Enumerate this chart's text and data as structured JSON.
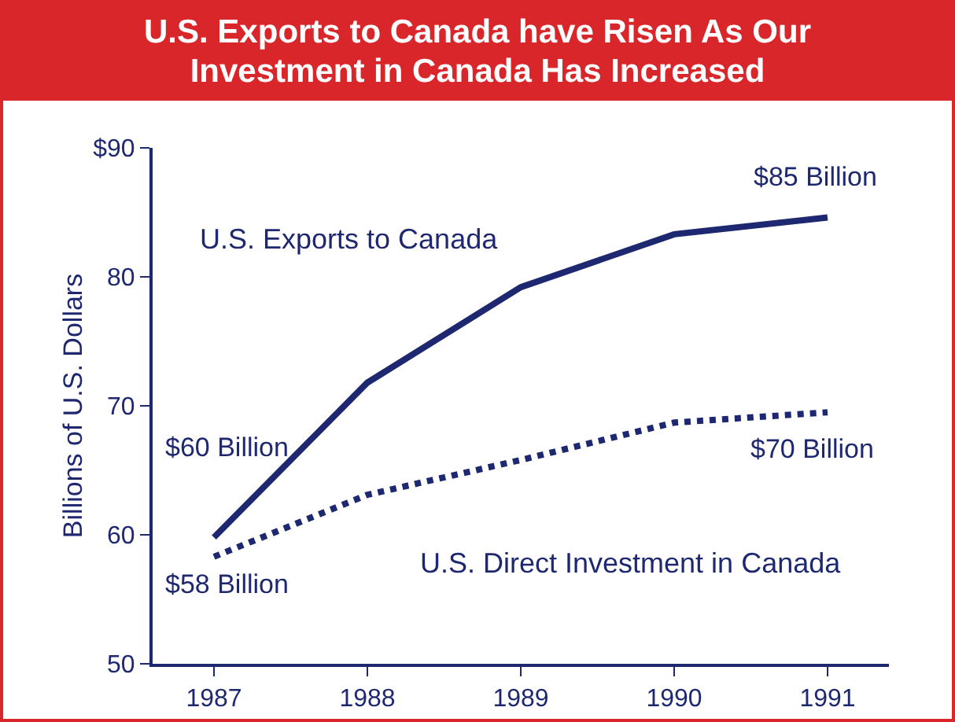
{
  "chart_data": {
    "type": "line",
    "title": "U.S. Exports to Canada have Risen As Our Investment in Canada Has Increased",
    "ylabel": "Billions of U.S. Dollars",
    "x": [
      1987,
      1988,
      1989,
      1990,
      1991
    ],
    "xlim": [
      1986.6,
      1991.4
    ],
    "xticks": [
      1987,
      1988,
      1989,
      1990,
      1991
    ],
    "ylim": [
      50,
      90
    ],
    "yticks": [
      50,
      60,
      70,
      80,
      {
        "value": 90,
        "label": "$90"
      }
    ],
    "grid": false,
    "legend": false,
    "marker": "none",
    "series": [
      {
        "name": "U.S. Exports to Canada",
        "color": "#1e2870",
        "line_style": "solid",
        "values": [
          59.8,
          71.8,
          79.2,
          83.3,
          84.6
        ],
        "value_labels": [
          "$60 Billion",
          null,
          null,
          null,
          "$85 Billion"
        ]
      },
      {
        "name": "U.S. Direct Investment in Canada",
        "color": "#1e2870",
        "line_style": "dotted",
        "values": [
          58.3,
          63.1,
          65.8,
          68.7,
          69.5
        ],
        "value_labels": [
          "$58 Billion",
          null,
          null,
          null,
          "$70 Billion"
        ]
      }
    ]
  }
}
